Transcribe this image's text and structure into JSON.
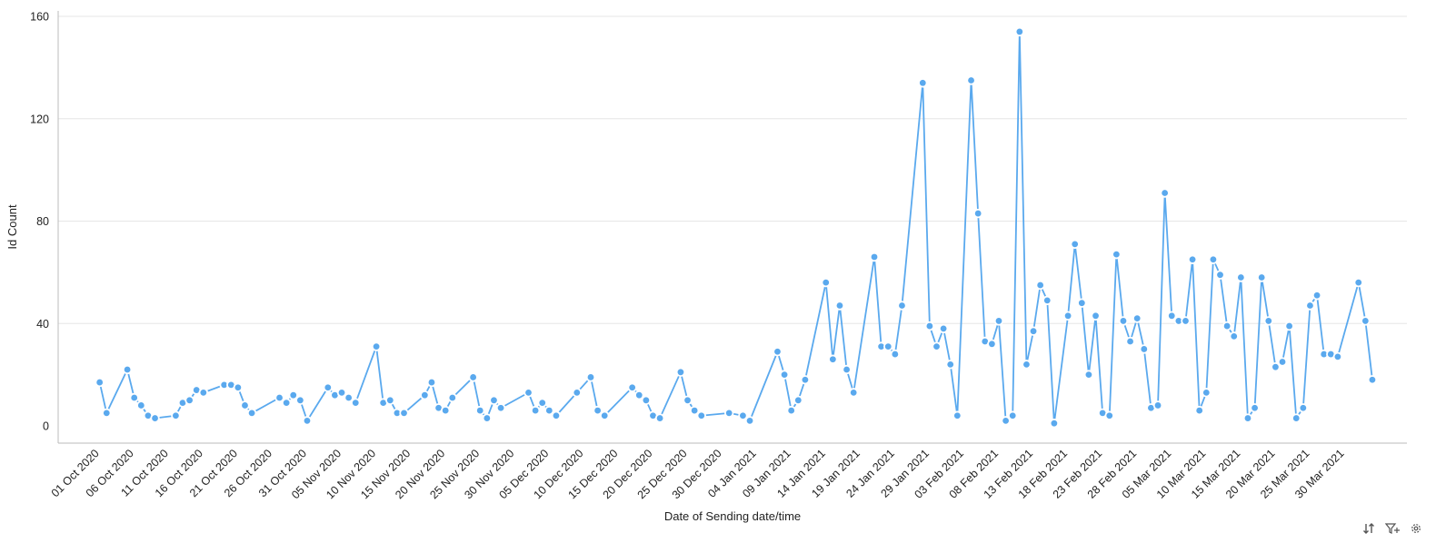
{
  "chart_data": {
    "type": "line",
    "xlabel": "Date of Sending date/time",
    "ylabel": "Id Count",
    "ylim": [
      0,
      160
    ],
    "yticks": [
      0,
      40,
      80,
      120,
      160
    ],
    "grid": true,
    "xlim": [
      "2020-09-25",
      "2021-04-08"
    ],
    "xtick_labels": [
      "01 Oct 2020",
      "06 Oct 2020",
      "11 Oct 2020",
      "16 Oct 2020",
      "21 Oct 2020",
      "26 Oct 2020",
      "31 Oct 2020",
      "05 Nov 2020",
      "10 Nov 2020",
      "15 Nov 2020",
      "20 Nov 2020",
      "25 Nov 2020",
      "30 Nov 2020",
      "05 Dec 2020",
      "10 Dec 2020",
      "15 Dec 2020",
      "20 Dec 2020",
      "25 Dec 2020",
      "30 Dec 2020",
      "04 Jan 2021",
      "09 Jan 2021",
      "14 Jan 2021",
      "19 Jan 2021",
      "24 Jan 2021",
      "29 Jan 2021",
      "03 Feb 2021",
      "08 Feb 2021",
      "13 Feb 2021",
      "18 Feb 2021",
      "23 Feb 2021",
      "28 Feb 2021",
      "05 Mar 2021",
      "10 Mar 2021",
      "15 Mar 2021",
      "20 Mar 2021",
      "25 Mar 2021",
      "30 Mar 2021"
    ],
    "xtick_dates": [
      "2020-10-01",
      "2020-10-06",
      "2020-10-11",
      "2020-10-16",
      "2020-10-21",
      "2020-10-26",
      "2020-10-31",
      "2020-11-05",
      "2020-11-10",
      "2020-11-15",
      "2020-11-20",
      "2020-11-25",
      "2020-11-30",
      "2020-12-05",
      "2020-12-10",
      "2020-12-15",
      "2020-12-20",
      "2020-12-25",
      "2020-12-30",
      "2021-01-04",
      "2021-01-09",
      "2021-01-14",
      "2021-01-19",
      "2021-01-24",
      "2021-01-29",
      "2021-02-03",
      "2021-02-08",
      "2021-02-13",
      "2021-02-18",
      "2021-02-23",
      "2021-02-28",
      "2021-03-05",
      "2021-03-10",
      "2021-03-15",
      "2021-03-20",
      "2021-03-25",
      "2021-03-30"
    ],
    "series": [
      {
        "color": "#5aa9ee",
        "points": [
          [
            "2020-10-01",
            17
          ],
          [
            "2020-10-02",
            5
          ],
          [
            "2020-10-05",
            22
          ],
          [
            "2020-10-06",
            11
          ],
          [
            "2020-10-07",
            8
          ],
          [
            "2020-10-08",
            4
          ],
          [
            "2020-10-09",
            3
          ],
          [
            "2020-10-12",
            4
          ],
          [
            "2020-10-13",
            9
          ],
          [
            "2020-10-14",
            10
          ],
          [
            "2020-10-15",
            14
          ],
          [
            "2020-10-16",
            13
          ],
          [
            "2020-10-19",
            16
          ],
          [
            "2020-10-20",
            16
          ],
          [
            "2020-10-21",
            15
          ],
          [
            "2020-10-22",
            8
          ],
          [
            "2020-10-23",
            5
          ],
          [
            "2020-10-27",
            11
          ],
          [
            "2020-10-28",
            9
          ],
          [
            "2020-10-29",
            12
          ],
          [
            "2020-10-30",
            10
          ],
          [
            "2020-10-31",
            2
          ],
          [
            "2020-11-03",
            15
          ],
          [
            "2020-11-04",
            12
          ],
          [
            "2020-11-05",
            13
          ],
          [
            "2020-11-06",
            11
          ],
          [
            "2020-11-07",
            9
          ],
          [
            "2020-11-10",
            31
          ],
          [
            "2020-11-11",
            9
          ],
          [
            "2020-11-12",
            10
          ],
          [
            "2020-11-13",
            5
          ],
          [
            "2020-11-14",
            5
          ],
          [
            "2020-11-17",
            12
          ],
          [
            "2020-11-18",
            17
          ],
          [
            "2020-11-19",
            7
          ],
          [
            "2020-11-20",
            6
          ],
          [
            "2020-11-21",
            11
          ],
          [
            "2020-11-24",
            19
          ],
          [
            "2020-11-25",
            6
          ],
          [
            "2020-11-26",
            3
          ],
          [
            "2020-11-27",
            10
          ],
          [
            "2020-11-28",
            7
          ],
          [
            "2020-12-02",
            13
          ],
          [
            "2020-12-03",
            6
          ],
          [
            "2020-12-04",
            9
          ],
          [
            "2020-12-05",
            6
          ],
          [
            "2020-12-06",
            4
          ],
          [
            "2020-12-09",
            13
          ],
          [
            "2020-12-11",
            19
          ],
          [
            "2020-12-12",
            6
          ],
          [
            "2020-12-13",
            4
          ],
          [
            "2020-12-17",
            15
          ],
          [
            "2020-12-18",
            12
          ],
          [
            "2020-12-19",
            10
          ],
          [
            "2020-12-20",
            4
          ],
          [
            "2020-12-21",
            3
          ],
          [
            "2020-12-24",
            21
          ],
          [
            "2020-12-25",
            10
          ],
          [
            "2020-12-26",
            6
          ],
          [
            "2020-12-27",
            4
          ],
          [
            "2020-12-31",
            5
          ],
          [
            "2021-01-02",
            4
          ],
          [
            "2021-01-03",
            2
          ],
          [
            "2021-01-07",
            29
          ],
          [
            "2021-01-08",
            20
          ],
          [
            "2021-01-09",
            6
          ],
          [
            "2021-01-10",
            10
          ],
          [
            "2021-01-11",
            18
          ],
          [
            "2021-01-14",
            56
          ],
          [
            "2021-01-15",
            26
          ],
          [
            "2021-01-16",
            47
          ],
          [
            "2021-01-17",
            22
          ],
          [
            "2021-01-18",
            13
          ],
          [
            "2021-01-21",
            66
          ],
          [
            "2021-01-22",
            31
          ],
          [
            "2021-01-23",
            31
          ],
          [
            "2021-01-24",
            28
          ],
          [
            "2021-01-25",
            47
          ],
          [
            "2021-01-28",
            134
          ],
          [
            "2021-01-29",
            39
          ],
          [
            "2021-01-30",
            31
          ],
          [
            "2021-01-31",
            38
          ],
          [
            "2021-02-01",
            24
          ],
          [
            "2021-02-02",
            4
          ],
          [
            "2021-02-04",
            135
          ],
          [
            "2021-02-05",
            83
          ],
          [
            "2021-02-06",
            33
          ],
          [
            "2021-02-07",
            32
          ],
          [
            "2021-02-08",
            41
          ],
          [
            "2021-02-09",
            2
          ],
          [
            "2021-02-10",
            4
          ],
          [
            "2021-02-11",
            154
          ],
          [
            "2021-02-12",
            24
          ],
          [
            "2021-02-13",
            37
          ],
          [
            "2021-02-14",
            55
          ],
          [
            "2021-02-15",
            49
          ],
          [
            "2021-02-16",
            1
          ],
          [
            "2021-02-18",
            43
          ],
          [
            "2021-02-19",
            71
          ],
          [
            "2021-02-20",
            48
          ],
          [
            "2021-02-21",
            20
          ],
          [
            "2021-02-22",
            43
          ],
          [
            "2021-02-23",
            5
          ],
          [
            "2021-02-24",
            4
          ],
          [
            "2021-02-25",
            67
          ],
          [
            "2021-02-26",
            41
          ],
          [
            "2021-02-27",
            33
          ],
          [
            "2021-02-28",
            42
          ],
          [
            "2021-03-01",
            30
          ],
          [
            "2021-03-02",
            7
          ],
          [
            "2021-03-03",
            8
          ],
          [
            "2021-03-04",
            91
          ],
          [
            "2021-03-05",
            43
          ],
          [
            "2021-03-06",
            41
          ],
          [
            "2021-03-07",
            41
          ],
          [
            "2021-03-08",
            65
          ],
          [
            "2021-03-09",
            6
          ],
          [
            "2021-03-10",
            13
          ],
          [
            "2021-03-11",
            65
          ],
          [
            "2021-03-12",
            59
          ],
          [
            "2021-03-13",
            39
          ],
          [
            "2021-03-14",
            35
          ],
          [
            "2021-03-15",
            58
          ],
          [
            "2021-03-16",
            3
          ],
          [
            "2021-03-17",
            7
          ],
          [
            "2021-03-18",
            58
          ],
          [
            "2021-03-19",
            41
          ],
          [
            "2021-03-20",
            23
          ],
          [
            "2021-03-21",
            25
          ],
          [
            "2021-03-22",
            39
          ],
          [
            "2021-03-23",
            3
          ],
          [
            "2021-03-24",
            7
          ],
          [
            "2021-03-25",
            47
          ],
          [
            "2021-03-26",
            51
          ],
          [
            "2021-03-27",
            28
          ],
          [
            "2021-03-28",
            28
          ],
          [
            "2021-03-29",
            27
          ],
          [
            "2021-04-01",
            56
          ],
          [
            "2021-04-02",
            41
          ],
          [
            "2021-04-03",
            18
          ]
        ]
      }
    ]
  },
  "toolbar": {
    "sort_icon": "sort-icon",
    "filter_icon": "filter-add-icon",
    "settings_icon": "gear-icon"
  }
}
